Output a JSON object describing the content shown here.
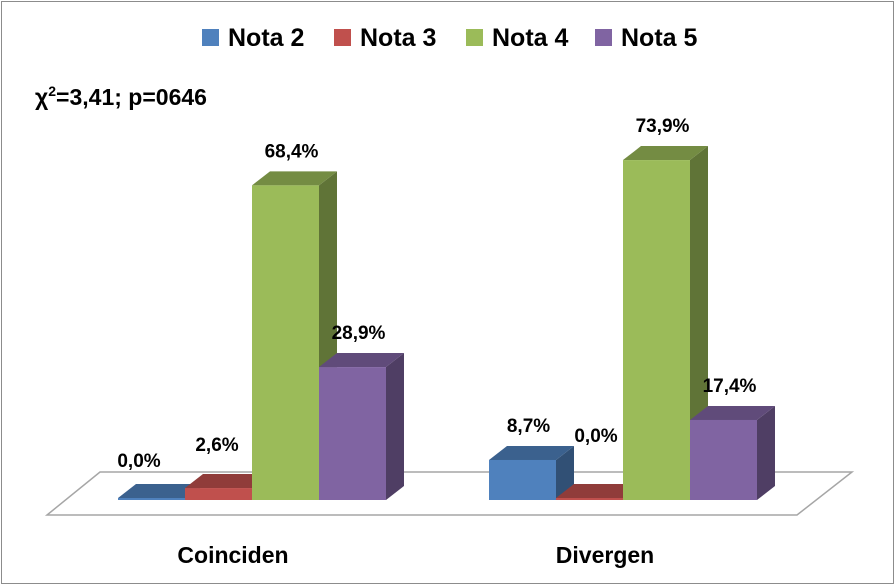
{
  "chart_data": {
    "type": "bar",
    "style": "3d-clustered",
    "categories": [
      "Coinciden",
      "Divergen"
    ],
    "series": [
      {
        "name": "Nota 2",
        "values": [
          0.0,
          8.7
        ],
        "labels": [
          "0,0%",
          "8,7%"
        ],
        "color": "#4F81BD"
      },
      {
        "name": "Nota 3",
        "values": [
          2.6,
          0.0
        ],
        "labels": [
          "2,6%",
          "0,0%"
        ],
        "color": "#C0504D"
      },
      {
        "name": "Nota 4",
        "values": [
          68.4,
          73.9
        ],
        "labels": [
          "68,4%",
          "73,9%"
        ],
        "color": "#9BBB59"
      },
      {
        "name": "Nota 5",
        "values": [
          28.9,
          17.4
        ],
        "labels": [
          "28,9%",
          "17,4%"
        ],
        "color": "#8064A2"
      }
    ],
    "annotation": {
      "prefix": "χ",
      "superscript": "2",
      "text": "=3,41; p=0646"
    },
    "legend": "top",
    "grid": false,
    "ylim": [
      0,
      80
    ]
  }
}
